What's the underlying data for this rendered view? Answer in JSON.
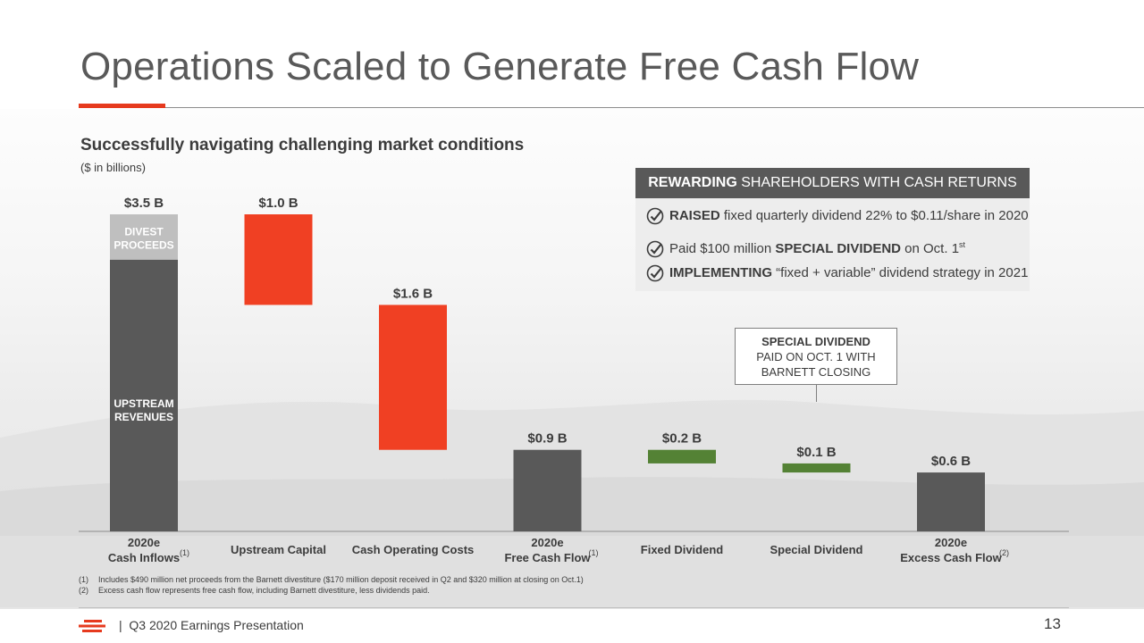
{
  "slide": {
    "title": "Operations Scaled to Generate Free Cash Flow",
    "subtitle": "Successfully navigating challenging market conditions",
    "units_note": "($ in billions)",
    "accent_color": "#e63a1e"
  },
  "callout": {
    "header_bold": "REWARDING",
    "header_rest": " SHAREHOLDERS WITH CASH RETURNS",
    "items": [
      {
        "bold": "RAISED",
        "text": " fixed quarterly dividend 22% to $0.11/share in 2020"
      },
      {
        "pre": "Paid $100 million ",
        "bold": "SPECIAL DIVIDEND",
        "post": " on Oct. 1",
        "sup": "st"
      },
      {
        "bold": "IMPLEMENTING",
        "text": " “fixed + variable” dividend strategy in 2021"
      }
    ],
    "icon": "check-circle-icon"
  },
  "special_note": {
    "line1": "SPECIAL DIVIDEND",
    "line2": "PAID ON OCT. 1 WITH",
    "line3": "BARNETT CLOSING"
  },
  "chart_data": {
    "type": "bar",
    "subtype": "waterfall",
    "categories": [
      {
        "line1": "2020e",
        "line2": "Cash Inflows",
        "footnote": "(1)"
      },
      {
        "line1": "Upstream Capital",
        "line2": "",
        "footnote": ""
      },
      {
        "line1": "Cash Operating Costs",
        "line2": "",
        "footnote": ""
      },
      {
        "line1": "2020e",
        "line2": "Free Cash Flow",
        "footnote": "(1)"
      },
      {
        "line1": "Fixed Dividend",
        "line2": "",
        "footnote": ""
      },
      {
        "line1": "Special Dividend",
        "line2": "",
        "footnote": ""
      },
      {
        "line1": "2020e",
        "line2": "Excess Cash Flow",
        "footnote": "(2)"
      }
    ],
    "bars": [
      {
        "start": 0,
        "end": 3.5,
        "label": "$3.5 B",
        "kind": "total"
      },
      {
        "start": 3.5,
        "end": 2.5,
        "label": "$1.0 B",
        "kind": "decrease"
      },
      {
        "start": 2.5,
        "end": 0.9,
        "label": "$1.6 B",
        "kind": "decrease"
      },
      {
        "start": 0,
        "end": 0.9,
        "label": "$0.9 B",
        "kind": "total"
      },
      {
        "start": 0.9,
        "end": 0.75,
        "label": "$0.2 B",
        "kind": "dividend"
      },
      {
        "start": 0.75,
        "end": 0.65,
        "label": "$0.1 B",
        "kind": "dividend"
      },
      {
        "start": 0,
        "end": 0.65,
        "label": "$0.6 B",
        "kind": "total"
      }
    ],
    "first_bar_segments": [
      {
        "start": 0,
        "end": 3.0,
        "label_line1": "UPSTREAM",
        "label_line2": "REVENUES"
      },
      {
        "start": 3.0,
        "end": 3.5,
        "label_line1": "DIVEST",
        "label_line2": "PROCEEDS"
      }
    ],
    "ylim": [
      0,
      3.5
    ],
    "colors": {
      "total": "#595959",
      "decrease": "#f04023",
      "dividend": "#548235",
      "divest": "#bfbfbf"
    }
  },
  "footnotes": [
    {
      "num": "(1)",
      "text": "Includes $490 million net proceeds from the Barnett divestiture ($170 million deposit received in Q2 and $320 million at closing on Oct.1)"
    },
    {
      "num": "(2)",
      "text": "Excess cash flow represents free cash flow, including Barnett divestiture, less dividends paid."
    }
  ],
  "footer": {
    "separator": "|",
    "text": "Q3 2020 Earnings Presentation",
    "page_number": "13",
    "logo": "company-logo-icon"
  }
}
